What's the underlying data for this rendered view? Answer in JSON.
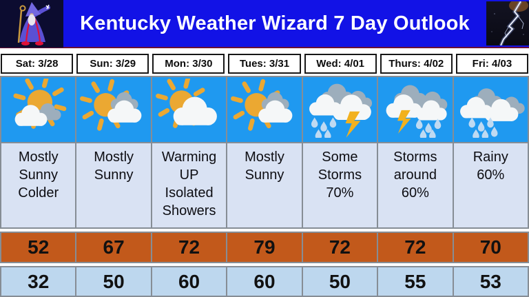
{
  "title": "Kentucky Weather Wizard 7 Day Outlook",
  "header": {
    "left_image": "weather-wizard",
    "right_image": "lightning-photo"
  },
  "colors": {
    "header_bg": "#1212e6",
    "icon_row_bg": "#1f99f0",
    "desc_row_bg": "#d9e2f3",
    "high_row_bg": "#c2591b",
    "low_row_bg": "#bdd7ee",
    "grid_line": "#868d95"
  },
  "days": [
    {
      "date": "Sat: 3/28",
      "icon": "sun-cloud-below",
      "condition": "Mostly Sunny Colder",
      "high": "52",
      "low": "32"
    },
    {
      "date": "Sun: 3/29",
      "icon": "sun-white-gray-clouds",
      "condition": "Mostly Sunny",
      "high": "67",
      "low": "50"
    },
    {
      "date": "Mon: 3/30",
      "icon": "sun-big-cloud",
      "condition": "Warming UP Isolated Showers",
      "high": "72",
      "low": "60"
    },
    {
      "date": "Tues: 3/31",
      "icon": "sun-white-gray-clouds",
      "condition": "Mostly Sunny",
      "high": "79",
      "low": "60"
    },
    {
      "date": "Wed: 4/01",
      "icon": "storms-rain-lightning",
      "condition": "Some Storms 70%",
      "high": "72",
      "low": "50"
    },
    {
      "date": "Thurs: 4/02",
      "icon": "lightning-rain-clouds",
      "condition": "Storms around 60%",
      "high": "72",
      "low": "55"
    },
    {
      "date": "Fri: 4/03",
      "icon": "rain-clouds",
      "condition": "Rainy 60%",
      "high": "70",
      "low": "53"
    }
  ]
}
